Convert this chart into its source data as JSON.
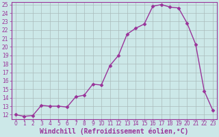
{
  "x": [
    0,
    1,
    2,
    3,
    4,
    5,
    6,
    7,
    8,
    9,
    10,
    11,
    12,
    13,
    14,
    15,
    16,
    17,
    18,
    19,
    20,
    21,
    22,
    23
  ],
  "y": [
    12.0,
    11.8,
    11.9,
    13.1,
    13.0,
    13.0,
    12.9,
    14.1,
    14.3,
    15.6,
    15.5,
    17.8,
    19.0,
    21.5,
    22.2,
    22.7,
    24.8,
    25.0,
    24.7,
    24.6,
    22.8,
    20.3,
    14.8,
    12.5
  ],
  "line_color": "#993399",
  "marker": "D",
  "markersize": 2.5,
  "linewidth": 1.0,
  "xlabel": "Windchill (Refroidissement éolien,°C)",
  "xlabel_fontsize": 7,
  "ylim_min": 11.5,
  "ylim_max": 25.3,
  "xlim_min": -0.5,
  "xlim_max": 23.5,
  "yticks": [
    12,
    13,
    14,
    15,
    16,
    17,
    18,
    19,
    20,
    21,
    22,
    23,
    24,
    25
  ],
  "xticks": [
    0,
    1,
    2,
    3,
    4,
    5,
    6,
    7,
    8,
    9,
    10,
    11,
    12,
    13,
    14,
    15,
    16,
    17,
    18,
    19,
    20,
    21,
    22,
    23
  ],
  "tick_fontsize": 5.5,
  "grid_color": "#aabbbb",
  "bg_color": "#cce8e8",
  "fig_bg": "#cce8e8",
  "spine_color": "#993399"
}
